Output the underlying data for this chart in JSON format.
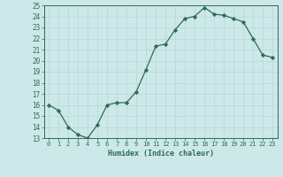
{
  "x": [
    0,
    1,
    2,
    3,
    4,
    5,
    6,
    7,
    8,
    9,
    10,
    11,
    12,
    13,
    14,
    15,
    16,
    17,
    18,
    19,
    20,
    21,
    22,
    23
  ],
  "y": [
    16.0,
    15.5,
    14.0,
    13.3,
    13.0,
    14.2,
    16.0,
    16.2,
    16.2,
    17.2,
    19.2,
    21.3,
    21.5,
    22.8,
    23.8,
    24.0,
    24.8,
    24.2,
    24.1,
    23.8,
    23.5,
    22.0,
    20.5,
    20.3
  ],
  "ylim": [
    13,
    25
  ],
  "xlim": [
    -0.5,
    23.5
  ],
  "yticks": [
    13,
    14,
    15,
    16,
    17,
    18,
    19,
    20,
    21,
    22,
    23,
    24,
    25
  ],
  "xticks": [
    0,
    1,
    2,
    3,
    4,
    5,
    6,
    7,
    8,
    9,
    10,
    11,
    12,
    13,
    14,
    15,
    16,
    17,
    18,
    19,
    20,
    21,
    22,
    23
  ],
  "xlabel": "Humidex (Indice chaleur)",
  "line_color": "#2d6b5e",
  "marker_color": "#2d6b5e",
  "bg_color": "#cce8e8",
  "grid_color": "#b8d8d8",
  "tick_color": "#2d6b5e",
  "label_color": "#2d6b5e",
  "spine_color": "#2d6b5e"
}
